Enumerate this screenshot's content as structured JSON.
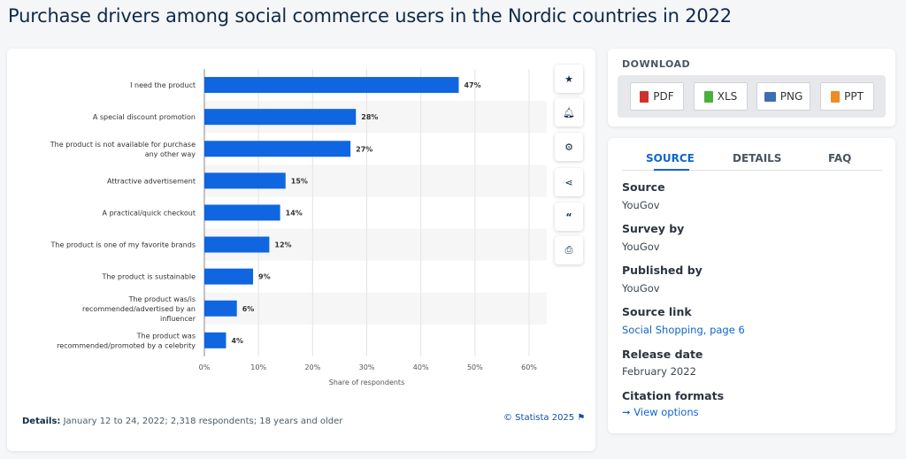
{
  "title": "Purchase drivers among social commerce users in the Nordic countries in 2022",
  "chart_data": {
    "type": "bar",
    "orientation": "horizontal",
    "categories": [
      "I need the product",
      "A special discount promotion",
      "The product is not available for purchase any other way",
      "Attractive advertisement",
      "A practical/quick checkout",
      "The product is one of my favorite brands",
      "The product is sustainable",
      "The product was/is recommended/advertised by an influencer",
      "The product was recommended/promoted by a celebrity"
    ],
    "category_lines": [
      [
        "I need the product"
      ],
      [
        "A special discount promotion"
      ],
      [
        "The product is not available for purchase",
        "any other way"
      ],
      [
        "Attractive advertisement"
      ],
      [
        "A practical/quick checkout"
      ],
      [
        "The product is one of my favorite brands"
      ],
      [
        "The product is sustainable"
      ],
      [
        "The product was/is",
        "recommended/advertised by an",
        "influencer"
      ],
      [
        "The product was",
        "recommended/promoted by a celebrity"
      ]
    ],
    "values": [
      47,
      28,
      27,
      15,
      14,
      12,
      9,
      6,
      4
    ],
    "xlabel": "Share of respondents",
    "ylabel": "",
    "xlim": [
      0,
      60
    ],
    "xticks": [
      "0%",
      "10%",
      "20%",
      "30%",
      "40%",
      "50%",
      "60%"
    ],
    "value_suffix": "%",
    "grid": true,
    "bar_color": "#0f66e0"
  },
  "toolbar": {
    "icons": [
      "star-icon",
      "bell-icon",
      "gear-icon",
      "share-icon",
      "quote-icon",
      "print-icon"
    ]
  },
  "details": {
    "label": "Details:",
    "text": "January 12 to 24, 2022; 2,318 respondents; 18 years and older"
  },
  "copyright": "© Statista 2025",
  "download": {
    "title": "DOWNLOAD",
    "buttons": [
      {
        "label": "PDF",
        "color": "#d0312d"
      },
      {
        "label": "XLS",
        "color": "#4caf3a"
      },
      {
        "label": "PNG",
        "color": "#3d6fb0"
      },
      {
        "label": "PPT",
        "color": "#f08a24"
      }
    ]
  },
  "source_panel": {
    "tabs": [
      "SOURCE",
      "DETAILS",
      "FAQ"
    ],
    "fields": [
      {
        "label": "Source",
        "value": "YouGov"
      },
      {
        "label": "Survey by",
        "value": "YouGov"
      },
      {
        "label": "Published by",
        "value": "YouGov"
      },
      {
        "label": "Source link",
        "value": "Social Shopping, page 6"
      },
      {
        "label": "Release date",
        "value": "February 2022"
      },
      {
        "label": "Citation formats",
        "value": "View options"
      }
    ]
  }
}
